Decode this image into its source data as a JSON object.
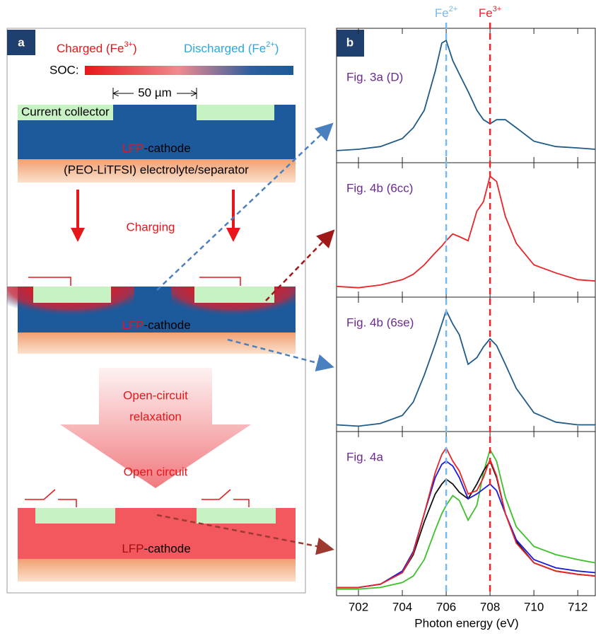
{
  "panel_a": {
    "label": "a",
    "charged": {
      "text": "Charged (Fe",
      "sup": "3+",
      "end": ")"
    },
    "discharged": {
      "text": "Discharged (Fe",
      "sup": "2+",
      "end": ")"
    },
    "soc_label": "SOC:",
    "scale": "50 µm",
    "collector": "Current collector",
    "cathode_prefix": "LFP",
    "cathode_suffix": "-cathode",
    "electrolyte": "(PEO-LiTFSI) electrolyte/separator",
    "charging": "Charging",
    "relaxation": [
      "Open-circuit",
      "relaxation"
    ],
    "open_circuit": "Open circuit"
  },
  "panel_b": {
    "label": "b"
  },
  "reference_lines": [
    {
      "x": 706,
      "label": "Fe",
      "sup": "2+",
      "color": "#7ab8e8"
    },
    {
      "x": 708,
      "label": "Fe",
      "sup": "3+",
      "color": "#e8262a"
    }
  ],
  "chart_data": [
    {
      "type": "line",
      "title": "Fig. 3a (D)",
      "xlim": [
        701,
        712.8
      ],
      "ylim": [
        0,
        1
      ],
      "x": [
        701,
        702,
        703,
        704,
        704.5,
        705,
        705.5,
        705.8,
        706,
        706.3,
        706.6,
        707,
        707.4,
        707.7,
        708,
        708.3,
        708.7,
        709.2,
        710,
        711,
        712,
        712.8
      ],
      "series": [
        {
          "color": "#1f5b86",
          "values": [
            0.09,
            0.1,
            0.12,
            0.18,
            0.26,
            0.39,
            0.68,
            0.89,
            0.91,
            0.76,
            0.66,
            0.53,
            0.39,
            0.32,
            0.29,
            0.32,
            0.32,
            0.26,
            0.16,
            0.12,
            0.11,
            0.1
          ]
        }
      ]
    },
    {
      "type": "line",
      "title": "Fig. 4b (6cc)",
      "xlim": [
        701,
        712.8
      ],
      "ylim": [
        0,
        1
      ],
      "x": [
        701,
        702,
        703,
        704,
        704.5,
        705,
        705.5,
        705.8,
        706,
        706.3,
        706.6,
        707,
        707.4,
        707.7,
        708,
        708.3,
        708.7,
        709.2,
        710,
        711,
        712,
        712.8
      ],
      "series": [
        {
          "color": "#e8262a",
          "values": [
            0.08,
            0.07,
            0.09,
            0.13,
            0.17,
            0.24,
            0.33,
            0.38,
            0.42,
            0.47,
            0.45,
            0.42,
            0.64,
            0.71,
            0.9,
            0.86,
            0.6,
            0.4,
            0.24,
            0.18,
            0.13,
            0.12
          ]
        }
      ]
    },
    {
      "type": "line",
      "title": "Fig. 4b (6se)",
      "xlim": [
        701,
        712.8
      ],
      "ylim": [
        0,
        1
      ],
      "x": [
        701,
        702,
        703,
        704,
        704.5,
        705,
        705.5,
        705.8,
        706,
        706.3,
        706.6,
        707,
        707.4,
        707.7,
        708,
        708.3,
        708.7,
        709.2,
        710,
        711,
        712,
        712.8
      ],
      "series": [
        {
          "color": "#1f5b86",
          "values": [
            0.05,
            0.04,
            0.06,
            0.12,
            0.22,
            0.42,
            0.65,
            0.8,
            0.9,
            0.8,
            0.72,
            0.5,
            0.55,
            0.63,
            0.69,
            0.64,
            0.5,
            0.32,
            0.14,
            0.07,
            0.05,
            0.05
          ]
        }
      ]
    },
    {
      "type": "line",
      "title": "Fig. 4a",
      "xlim": [
        701,
        712.8
      ],
      "ylim": [
        0,
        1
      ],
      "xticks": [
        702,
        704,
        706,
        708,
        710,
        712
      ],
      "xlabel": "Photon energy (eV)",
      "x": [
        701,
        702,
        703,
        704,
        704.5,
        705,
        705.5,
        705.8,
        706,
        706.3,
        706.6,
        707,
        707.4,
        707.7,
        708,
        708.3,
        708.7,
        709.2,
        710,
        711,
        712,
        712.8
      ],
      "series": [
        {
          "color": "#3cc02a",
          "values": [
            0.04,
            0.04,
            0.05,
            0.08,
            0.12,
            0.22,
            0.4,
            0.5,
            0.55,
            0.61,
            0.58,
            0.46,
            0.55,
            0.75,
            0.89,
            0.82,
            0.6,
            0.42,
            0.3,
            0.25,
            0.22,
            0.2
          ]
        },
        {
          "color": "#111111",
          "values": [
            0.05,
            0.05,
            0.07,
            0.14,
            0.25,
            0.45,
            0.62,
            0.68,
            0.71,
            0.68,
            0.63,
            0.59,
            0.68,
            0.76,
            0.82,
            0.72,
            0.5,
            0.33,
            0.2,
            0.15,
            0.13,
            0.12
          ]
        },
        {
          "color": "#1a1adb",
          "values": [
            0.05,
            0.05,
            0.07,
            0.15,
            0.27,
            0.5,
            0.72,
            0.8,
            0.82,
            0.79,
            0.72,
            0.59,
            0.62,
            0.65,
            0.68,
            0.64,
            0.5,
            0.34,
            0.22,
            0.17,
            0.15,
            0.14
          ]
        },
        {
          "color": "#e8262a",
          "values": [
            0.05,
            0.05,
            0.07,
            0.14,
            0.26,
            0.5,
            0.75,
            0.86,
            0.9,
            0.82,
            0.76,
            0.62,
            0.64,
            0.72,
            0.83,
            0.73,
            0.5,
            0.32,
            0.2,
            0.15,
            0.13,
            0.12
          ]
        }
      ]
    }
  ]
}
